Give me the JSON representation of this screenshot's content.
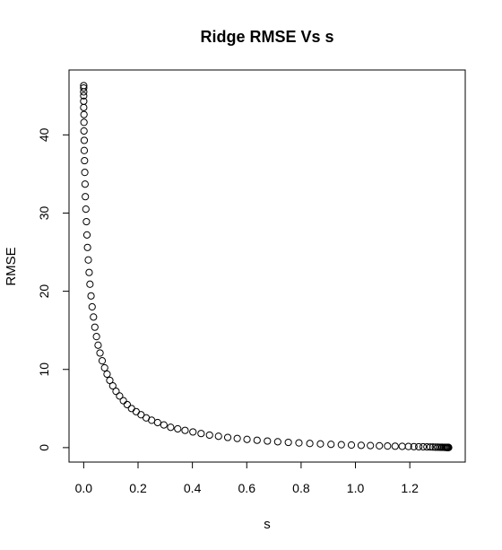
{
  "chart_data": {
    "type": "scatter",
    "title": "Ridge RMSE Vs s",
    "xlabel": "s",
    "ylabel": "RMSE",
    "xlim": [
      -0.054,
      1.404
    ],
    "ylim": [
      -1.85,
      48.3
    ],
    "x_ticks": [
      0.0,
      0.2,
      0.4,
      0.6,
      0.8,
      1.0,
      1.2
    ],
    "x_tick_labels": [
      "0.0",
      "0.2",
      "0.4",
      "0.6",
      "0.8",
      "1.0",
      "1.2"
    ],
    "y_ticks": [
      0,
      10,
      20,
      30,
      40
    ],
    "y_tick_labels": [
      "0",
      "10",
      "20",
      "30",
      "40"
    ],
    "marker": "open-circle",
    "series": [
      {
        "x": [
          0.0,
          0.0,
          0.0,
          0.0,
          0.0,
          0.0,
          0.001,
          0.001,
          0.001,
          0.002,
          0.002,
          0.003,
          0.004,
          0.005,
          0.006,
          0.008,
          0.01,
          0.012,
          0.014,
          0.017,
          0.02,
          0.023,
          0.027,
          0.031,
          0.036,
          0.041,
          0.047,
          0.053,
          0.06,
          0.068,
          0.077,
          0.086,
          0.096,
          0.107,
          0.119,
          0.132,
          0.146,
          0.16,
          0.176,
          0.193,
          0.211,
          0.23,
          0.25,
          0.272,
          0.295,
          0.32,
          0.346,
          0.373,
          0.402,
          0.432,
          0.463,
          0.496,
          0.53,
          0.565,
          0.601,
          0.638,
          0.676,
          0.714,
          0.753,
          0.792,
          0.832,
          0.871,
          0.91,
          0.948,
          0.985,
          1.021,
          1.055,
          1.088,
          1.118,
          1.146,
          1.172,
          1.195,
          1.215,
          1.233,
          1.249,
          1.263,
          1.275,
          1.285,
          1.294,
          1.302,
          1.309,
          1.315,
          1.32,
          1.325,
          1.329,
          1.332,
          1.335,
          1.337,
          1.339,
          1.34,
          1.341,
          1.342,
          1.343
        ],
        "y": [
          46.3,
          46.0,
          45.5,
          45.0,
          44.3,
          43.5,
          42.6,
          41.6,
          40.5,
          39.3,
          38.0,
          36.7,
          35.2,
          33.7,
          32.1,
          30.5,
          28.9,
          27.2,
          25.6,
          24.0,
          22.4,
          20.9,
          19.4,
          18.0,
          16.7,
          15.4,
          14.2,
          13.1,
          12.1,
          11.1,
          10.2,
          9.4,
          8.6,
          7.9,
          7.2,
          6.6,
          6.0,
          5.5,
          5.0,
          4.6,
          4.2,
          3.8,
          3.5,
          3.2,
          2.9,
          2.6,
          2.4,
          2.2,
          2.0,
          1.8,
          1.6,
          1.45,
          1.3,
          1.17,
          1.05,
          0.94,
          0.84,
          0.75,
          0.67,
          0.6,
          0.53,
          0.47,
          0.42,
          0.37,
          0.33,
          0.29,
          0.26,
          0.23,
          0.2,
          0.18,
          0.16,
          0.14,
          0.12,
          0.11,
          0.1,
          0.09,
          0.08,
          0.07,
          0.06,
          0.055,
          0.05,
          0.045,
          0.04,
          0.035,
          0.03,
          0.028,
          0.026,
          0.024,
          0.022,
          0.02,
          0.019,
          0.018,
          0.017
        ]
      }
    ]
  }
}
